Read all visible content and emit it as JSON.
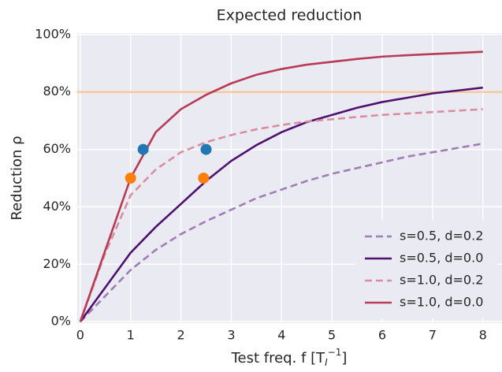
{
  "chart_data": {
    "type": "line",
    "title": "Expected reduction",
    "xlabel": {
      "text": "Test freq. f [T",
      "sub": "I",
      "sup": "−1",
      "end": "]"
    },
    "ylabel": "Reduction ρ",
    "x": [
      0,
      0.5,
      1,
      1.5,
      2,
      2.5,
      3,
      3.5,
      4,
      4.5,
      5,
      5.5,
      6,
      6.5,
      7,
      7.5,
      8
    ],
    "series": [
      {
        "name": "s=0.5, d=0.2",
        "color": "#a17db5",
        "dashed": true,
        "values": [
          0,
          9,
          18,
          25,
          30.5,
          35,
          39,
          43,
          46,
          49,
          51.5,
          53.5,
          55.5,
          57.5,
          59,
          60.5,
          62
        ]
      },
      {
        "name": "s=0.5, d=0.0",
        "color": "#4f1070",
        "dashed": false,
        "values": [
          0,
          12,
          24,
          33,
          41,
          49,
          56,
          61.5,
          66,
          69.5,
          72,
          74.5,
          76.5,
          78,
          79.5,
          80.5,
          81.5
        ]
      },
      {
        "name": "s=1.0, d=0.2",
        "color": "#d98ea0",
        "dashed": true,
        "values": [
          0,
          24,
          44,
          53,
          59,
          62.5,
          65,
          67,
          68.5,
          69.7,
          70.5,
          71.3,
          72,
          72.5,
          73,
          73.5,
          74
        ]
      },
      {
        "name": "s=1.0, d=0.0",
        "color": "#b83a55",
        "dashed": false,
        "values": [
          0,
          25,
          50,
          66,
          74,
          79,
          83,
          86,
          88,
          89.5,
          90.5,
          91.5,
          92.3,
          92.8,
          93.2,
          93.6,
          94
        ]
      }
    ],
    "hline": {
      "value": 80,
      "color": "#f9c89b"
    },
    "markers": [
      {
        "color": "#1f77b4",
        "x": [
          1.25,
          2.5
        ],
        "y": [
          60,
          60
        ]
      },
      {
        "color": "#ff7f0e",
        "x": [
          1,
          2.45
        ],
        "y": [
          50,
          50
        ]
      }
    ],
    "xlim": [
      -0.06,
      8.38
    ],
    "ylim": [
      -0.5,
      100.5
    ],
    "xticks": [
      0,
      1,
      2,
      3,
      4,
      5,
      6,
      7,
      8
    ],
    "yticks": [
      {
        "value": 0,
        "label": "0%"
      },
      {
        "value": 20,
        "label": "20%"
      },
      {
        "value": 40,
        "label": "40%"
      },
      {
        "value": 60,
        "label": "60%"
      },
      {
        "value": 80,
        "label": "80%"
      },
      {
        "value": 100,
        "label": "100%"
      }
    ],
    "grid": true,
    "legend": "lower right"
  }
}
